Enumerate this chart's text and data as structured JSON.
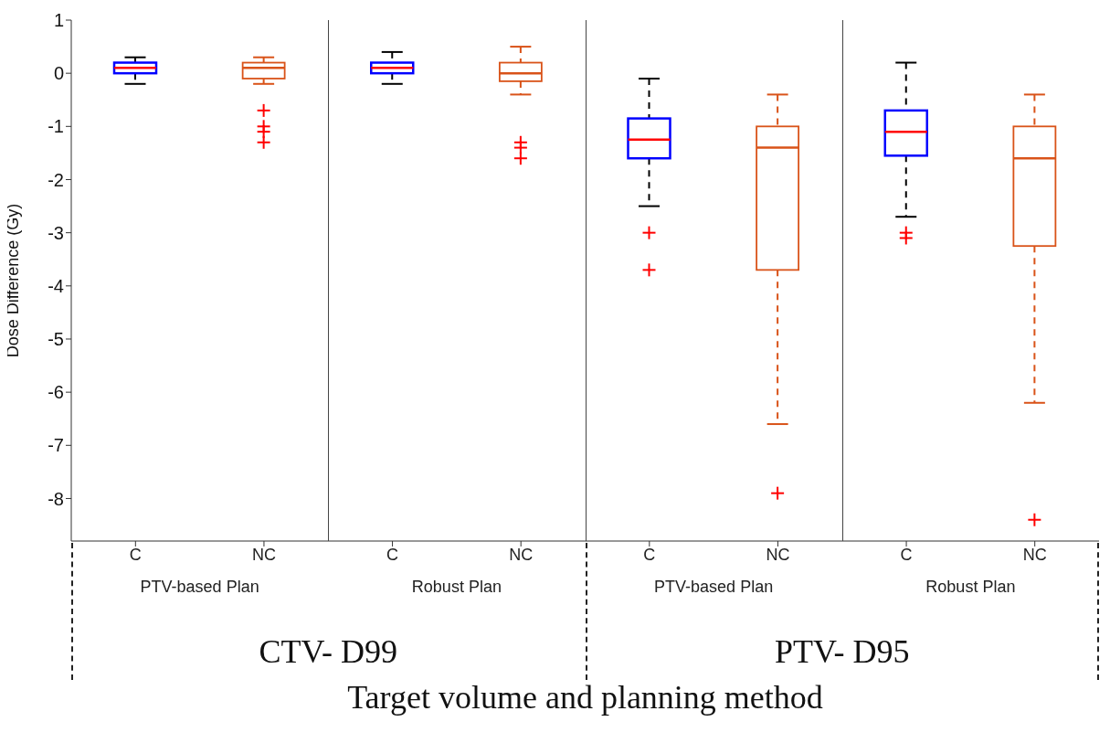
{
  "chart_data": {
    "type": "box",
    "xlabel": "Target volume and planning method",
    "ylabel": "Dose Difference (Gy)",
    "categories": [
      "C",
      "NC",
      "C",
      "NC",
      "C",
      "NC",
      "C",
      "NC"
    ],
    "colors": [
      "#0000ff",
      "#d95319",
      "#0000ff",
      "#d95319",
      "#0000ff",
      "#d95319",
      "#0000ff",
      "#d95319"
    ],
    "boxes": [
      {
        "low": -0.2,
        "q1": 0,
        "median": 0.1,
        "q3": 0.2,
        "high": 0.3
      },
      {
        "low": -0.2,
        "q1": -0.1,
        "median": 0.1,
        "q3": 0.2,
        "high": 0.3,
        "outliers": [
          -0.7,
          -1.0,
          -1.1,
          -1.3
        ]
      },
      {
        "low": -0.2,
        "q1": 0,
        "median": 0.1,
        "q3": 0.2,
        "high": 0.4
      },
      {
        "low": -0.4,
        "q1": -0.15,
        "median": 0,
        "q3": 0.2,
        "high": 0.5,
        "outliers": [
          -1.3,
          -1.4,
          -1.6
        ]
      },
      {
        "low": -2.5,
        "q1": -1.6,
        "median": -1.25,
        "q3": -0.85,
        "high": -0.1,
        "outliers": [
          -3.0,
          -3.7
        ]
      },
      {
        "low": -6.6,
        "q1": -3.7,
        "median": -1.4,
        "q3": -1.0,
        "high": -0.4,
        "outliers": [
          -7.9
        ]
      },
      {
        "low": -2.7,
        "q1": -1.55,
        "median": -1.1,
        "q3": -0.7,
        "high": 0.2,
        "outliers": [
          -3.0,
          -3.1
        ]
      },
      {
        "low": -6.2,
        "q1": -3.25,
        "median": -1.6,
        "q3": -1.0,
        "high": -0.4,
        "outliers": [
          -8.4
        ]
      }
    ],
    "ylim": [
      -8.8,
      1
    ],
    "yticks": [
      1,
      0,
      -1,
      -2,
      -3,
      -4,
      -5,
      -6,
      -7,
      -8
    ],
    "marker": "cross",
    "annotations": [
      "PTV-based Plan",
      "Robust Plan",
      "PTV-based Plan",
      "Robust Plan",
      "CTV- D99",
      "PTV- D95"
    ]
  }
}
